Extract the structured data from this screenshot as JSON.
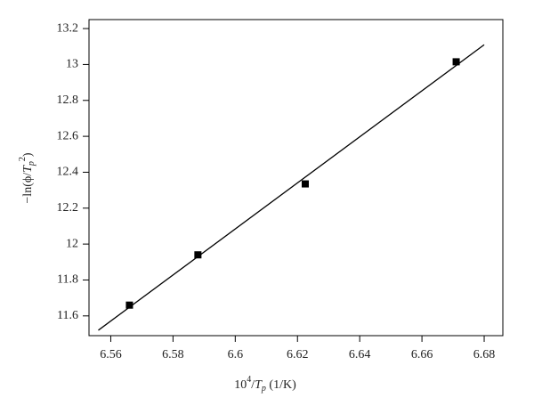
{
  "chart_data": {
    "type": "scatter",
    "x_label": [
      "10",
      "4",
      "/",
      "T",
      "p",
      " (1/K)"
    ],
    "y_label": [
      "−ln(ϕ/",
      "T",
      "p",
      "2",
      ")"
    ],
    "points": {
      "color": "#000000",
      "x": [
        6.566,
        6.588,
        6.6225,
        6.671
      ],
      "values": [
        11.66,
        11.94,
        12.335,
        13.015
      ]
    },
    "fit_line": {
      "color": "#000000",
      "x": [
        6.556,
        6.68
      ],
      "values": [
        11.52,
        13.11
      ]
    },
    "xlim": [
      6.553,
      6.686
    ],
    "xticks": [
      6.56,
      6.58,
      6.6,
      6.62,
      6.64,
      6.66,
      6.68
    ],
    "ylim": [
      11.49,
      13.25
    ],
    "yticks": [
      11.6,
      11.8,
      12,
      12.2,
      12.4,
      12.6,
      12.8,
      13,
      13.2
    ]
  }
}
